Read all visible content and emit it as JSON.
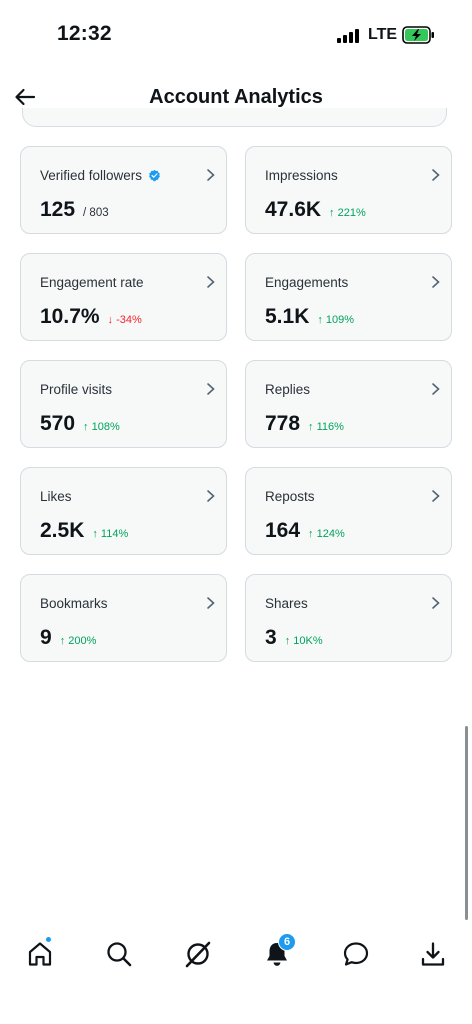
{
  "status_bar": {
    "time": "12:32",
    "network": "LTE"
  },
  "header": {
    "title": "Account Analytics"
  },
  "cards": [
    {
      "label": "Verified followers",
      "value": "125",
      "sub": "/ 803",
      "change": "",
      "direction": "none",
      "verified": true
    },
    {
      "label": "Impressions",
      "value": "47.6K",
      "sub": "",
      "change": "↑ 221%",
      "direction": "up"
    },
    {
      "label": "Engagement rate",
      "value": "10.7%",
      "sub": "",
      "change": "↓ -34%",
      "direction": "down"
    },
    {
      "label": "Engagements",
      "value": "5.1K",
      "sub": "",
      "change": "↑ 109%",
      "direction": "up"
    },
    {
      "label": "Profile visits",
      "value": "570",
      "sub": "",
      "change": "↑ 108%",
      "direction": "up"
    },
    {
      "label": "Replies",
      "value": "778",
      "sub": "",
      "change": "↑ 116%",
      "direction": "up"
    },
    {
      "label": "Likes",
      "value": "2.5K",
      "sub": "",
      "change": "↑ 114%",
      "direction": "up"
    },
    {
      "label": "Reposts",
      "value": "164",
      "sub": "",
      "change": "↑ 124%",
      "direction": "up"
    },
    {
      "label": "Bookmarks",
      "value": "9",
      "sub": "",
      "change": "↑ 200%",
      "direction": "up"
    },
    {
      "label": "Shares",
      "value": "3",
      "sub": "",
      "change": "↑ 10K%",
      "direction": "up"
    }
  ],
  "bottom_nav": {
    "items": [
      "home-icon",
      "search-icon",
      "grok-icon",
      "notifications-icon",
      "messages-icon",
      "download-icon"
    ],
    "notifications_badge": "6"
  },
  "colors": {
    "accent": "#1d9bf0",
    "positive": "#00a35c",
    "negative": "#f4212e"
  }
}
